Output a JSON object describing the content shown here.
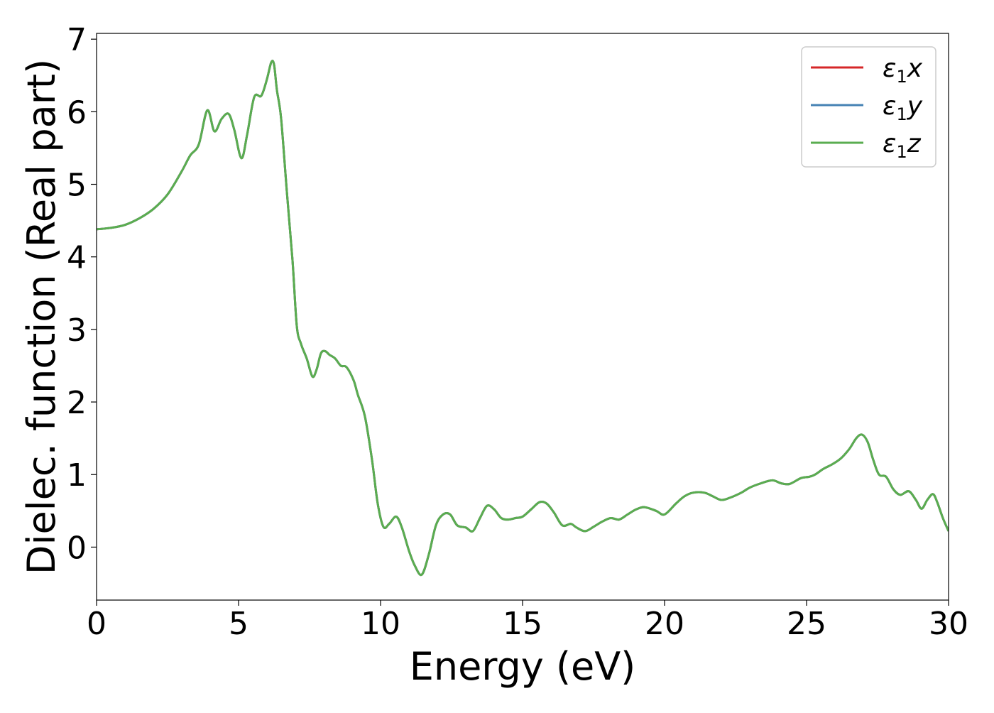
{
  "chart_data": {
    "type": "line",
    "title": "",
    "xlabel": "Energy (eV)",
    "ylabel": "Dielec. function (Real part)",
    "xlim": [
      0,
      30
    ],
    "ylim": [
      -0.73,
      7.08
    ],
    "xticks": [
      0,
      5,
      10,
      15,
      20,
      25,
      30
    ],
    "yticks": [
      0,
      1,
      2,
      3,
      4,
      5,
      6,
      7
    ],
    "grid": false,
    "legend_position": "top-right",
    "series": [
      {
        "name": "ε₁x",
        "legend_base": "ε",
        "legend_sub": "1",
        "legend_var": "x",
        "color": "#d62728"
      },
      {
        "name": "ε₁y",
        "legend_base": "ε",
        "legend_sub": "1",
        "legend_var": "y",
        "color": "#4682b4"
      },
      {
        "name": "ε₁z",
        "legend_base": "ε",
        "legend_sub": "1",
        "legend_var": "z",
        "color": "#5aad50"
      }
    ],
    "x": [
      0,
      0.5,
      1.0,
      1.5,
      2.0,
      2.5,
      3.0,
      3.3,
      3.6,
      3.9,
      4.15,
      4.4,
      4.65,
      4.85,
      5.1,
      5.3,
      5.55,
      5.8,
      6.0,
      6.15,
      6.25,
      6.35,
      6.5,
      6.7,
      6.9,
      7.05,
      7.2,
      7.4,
      7.6,
      7.75,
      7.9,
      8.05,
      8.2,
      8.4,
      8.6,
      8.8,
      9.05,
      9.2,
      9.45,
      9.7,
      9.9,
      10.1,
      10.3,
      10.55,
      10.75,
      11.0,
      11.2,
      11.45,
      11.7,
      11.95,
      12.2,
      12.45,
      12.7,
      13.0,
      13.25,
      13.5,
      13.75,
      14.0,
      14.25,
      14.5,
      14.75,
      15.0,
      15.3,
      15.6,
      15.85,
      16.1,
      16.4,
      16.7,
      16.9,
      17.2,
      17.5,
      17.8,
      18.1,
      18.4,
      18.7,
      19.0,
      19.3,
      19.7,
      20.0,
      20.4,
      20.7,
      21.0,
      21.4,
      21.7,
      22.0,
      22.3,
      22.7,
      23.0,
      23.4,
      23.8,
      24.1,
      24.4,
      24.8,
      25.1,
      25.3,
      25.6,
      25.9,
      26.2,
      26.5,
      26.75,
      26.95,
      27.15,
      27.35,
      27.55,
      27.8,
      28.05,
      28.3,
      28.6,
      28.85,
      29.05,
      29.25,
      29.45,
      29.6,
      29.8,
      30.0
    ],
    "y": [
      4.38,
      4.4,
      4.44,
      4.53,
      4.66,
      4.86,
      5.18,
      5.4,
      5.55,
      6.02,
      5.73,
      5.9,
      5.97,
      5.75,
      5.36,
      5.68,
      6.2,
      6.22,
      6.45,
      6.68,
      6.65,
      6.3,
      5.9,
      4.9,
      3.95,
      3.05,
      2.8,
      2.6,
      2.35,
      2.45,
      2.67,
      2.7,
      2.65,
      2.6,
      2.5,
      2.48,
      2.3,
      2.1,
      1.8,
      1.2,
      0.6,
      0.28,
      0.32,
      0.42,
      0.27,
      -0.05,
      -0.25,
      -0.38,
      -0.1,
      0.3,
      0.45,
      0.45,
      0.3,
      0.27,
      0.22,
      0.4,
      0.57,
      0.52,
      0.4,
      0.38,
      0.4,
      0.42,
      0.52,
      0.62,
      0.6,
      0.48,
      0.3,
      0.32,
      0.27,
      0.22,
      0.28,
      0.35,
      0.4,
      0.38,
      0.45,
      0.52,
      0.55,
      0.5,
      0.45,
      0.6,
      0.7,
      0.75,
      0.75,
      0.7,
      0.65,
      0.68,
      0.75,
      0.82,
      0.88,
      0.92,
      0.88,
      0.87,
      0.95,
      0.97,
      1.0,
      1.08,
      1.14,
      1.22,
      1.35,
      1.5,
      1.55,
      1.45,
      1.2,
      1.0,
      0.97,
      0.8,
      0.72,
      0.77,
      0.65,
      0.53,
      0.65,
      0.73,
      0.62,
      0.4,
      0.22
    ]
  }
}
